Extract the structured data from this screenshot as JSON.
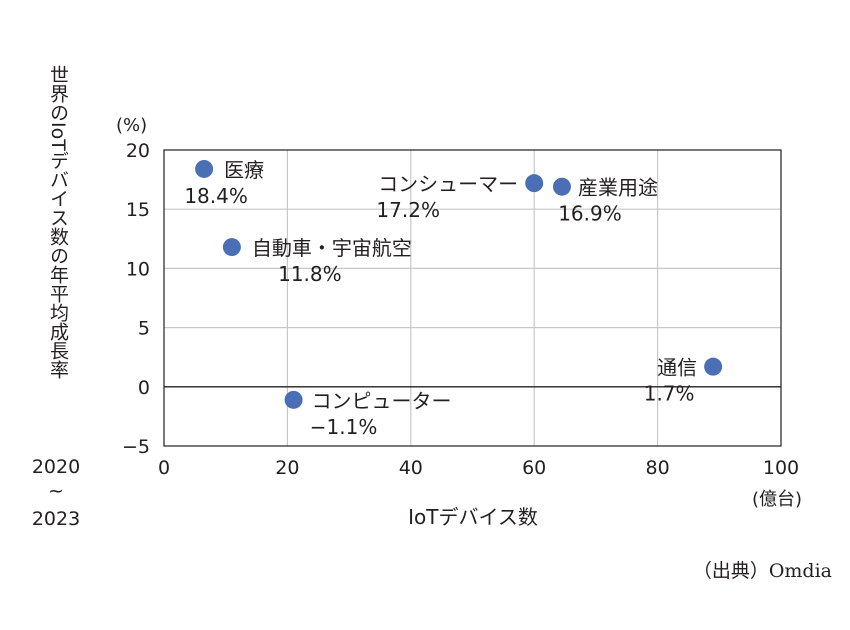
{
  "chart_data": {
    "type": "scatter",
    "title": "",
    "ylabel": "世界のIoTデバイス数の年平均成長率",
    "ylabel_period": [
      "2020",
      "~",
      "2023"
    ],
    "yunit": "(%)",
    "xlabel": "IoTデバイス数",
    "xunit": "(億台)",
    "xlim": [
      0,
      100
    ],
    "ylim": [
      -5,
      20
    ],
    "xticks": [
      0,
      20,
      40,
      60,
      80,
      100
    ],
    "yticks": [
      -5,
      0,
      5,
      10,
      15,
      20
    ],
    "ytick_labels": [
      "−5",
      "0",
      "5",
      "10",
      "15",
      "20"
    ],
    "grid": true,
    "marker_color": "#4a6fb5",
    "points": [
      {
        "name": "医療",
        "value_label": "18.4%",
        "x": 6.5,
        "y": 18.4
      },
      {
        "name": "自動車・宇宙航空",
        "value_label": "11.8%",
        "x": 11.0,
        "y": 11.8
      },
      {
        "name": "コンシューマー",
        "value_label": "17.2%",
        "x": 60.0,
        "y": 17.2
      },
      {
        "name": "産業用途",
        "value_label": "16.9%",
        "x": 64.5,
        "y": 16.9
      },
      {
        "name": "通信",
        "value_label": "1.7%",
        "x": 89.0,
        "y": 1.7
      },
      {
        "name": "コンピューター",
        "value_label": "−1.1%",
        "x": 21.0,
        "y": -1.1
      }
    ]
  },
  "source": "（出典）Omdia"
}
